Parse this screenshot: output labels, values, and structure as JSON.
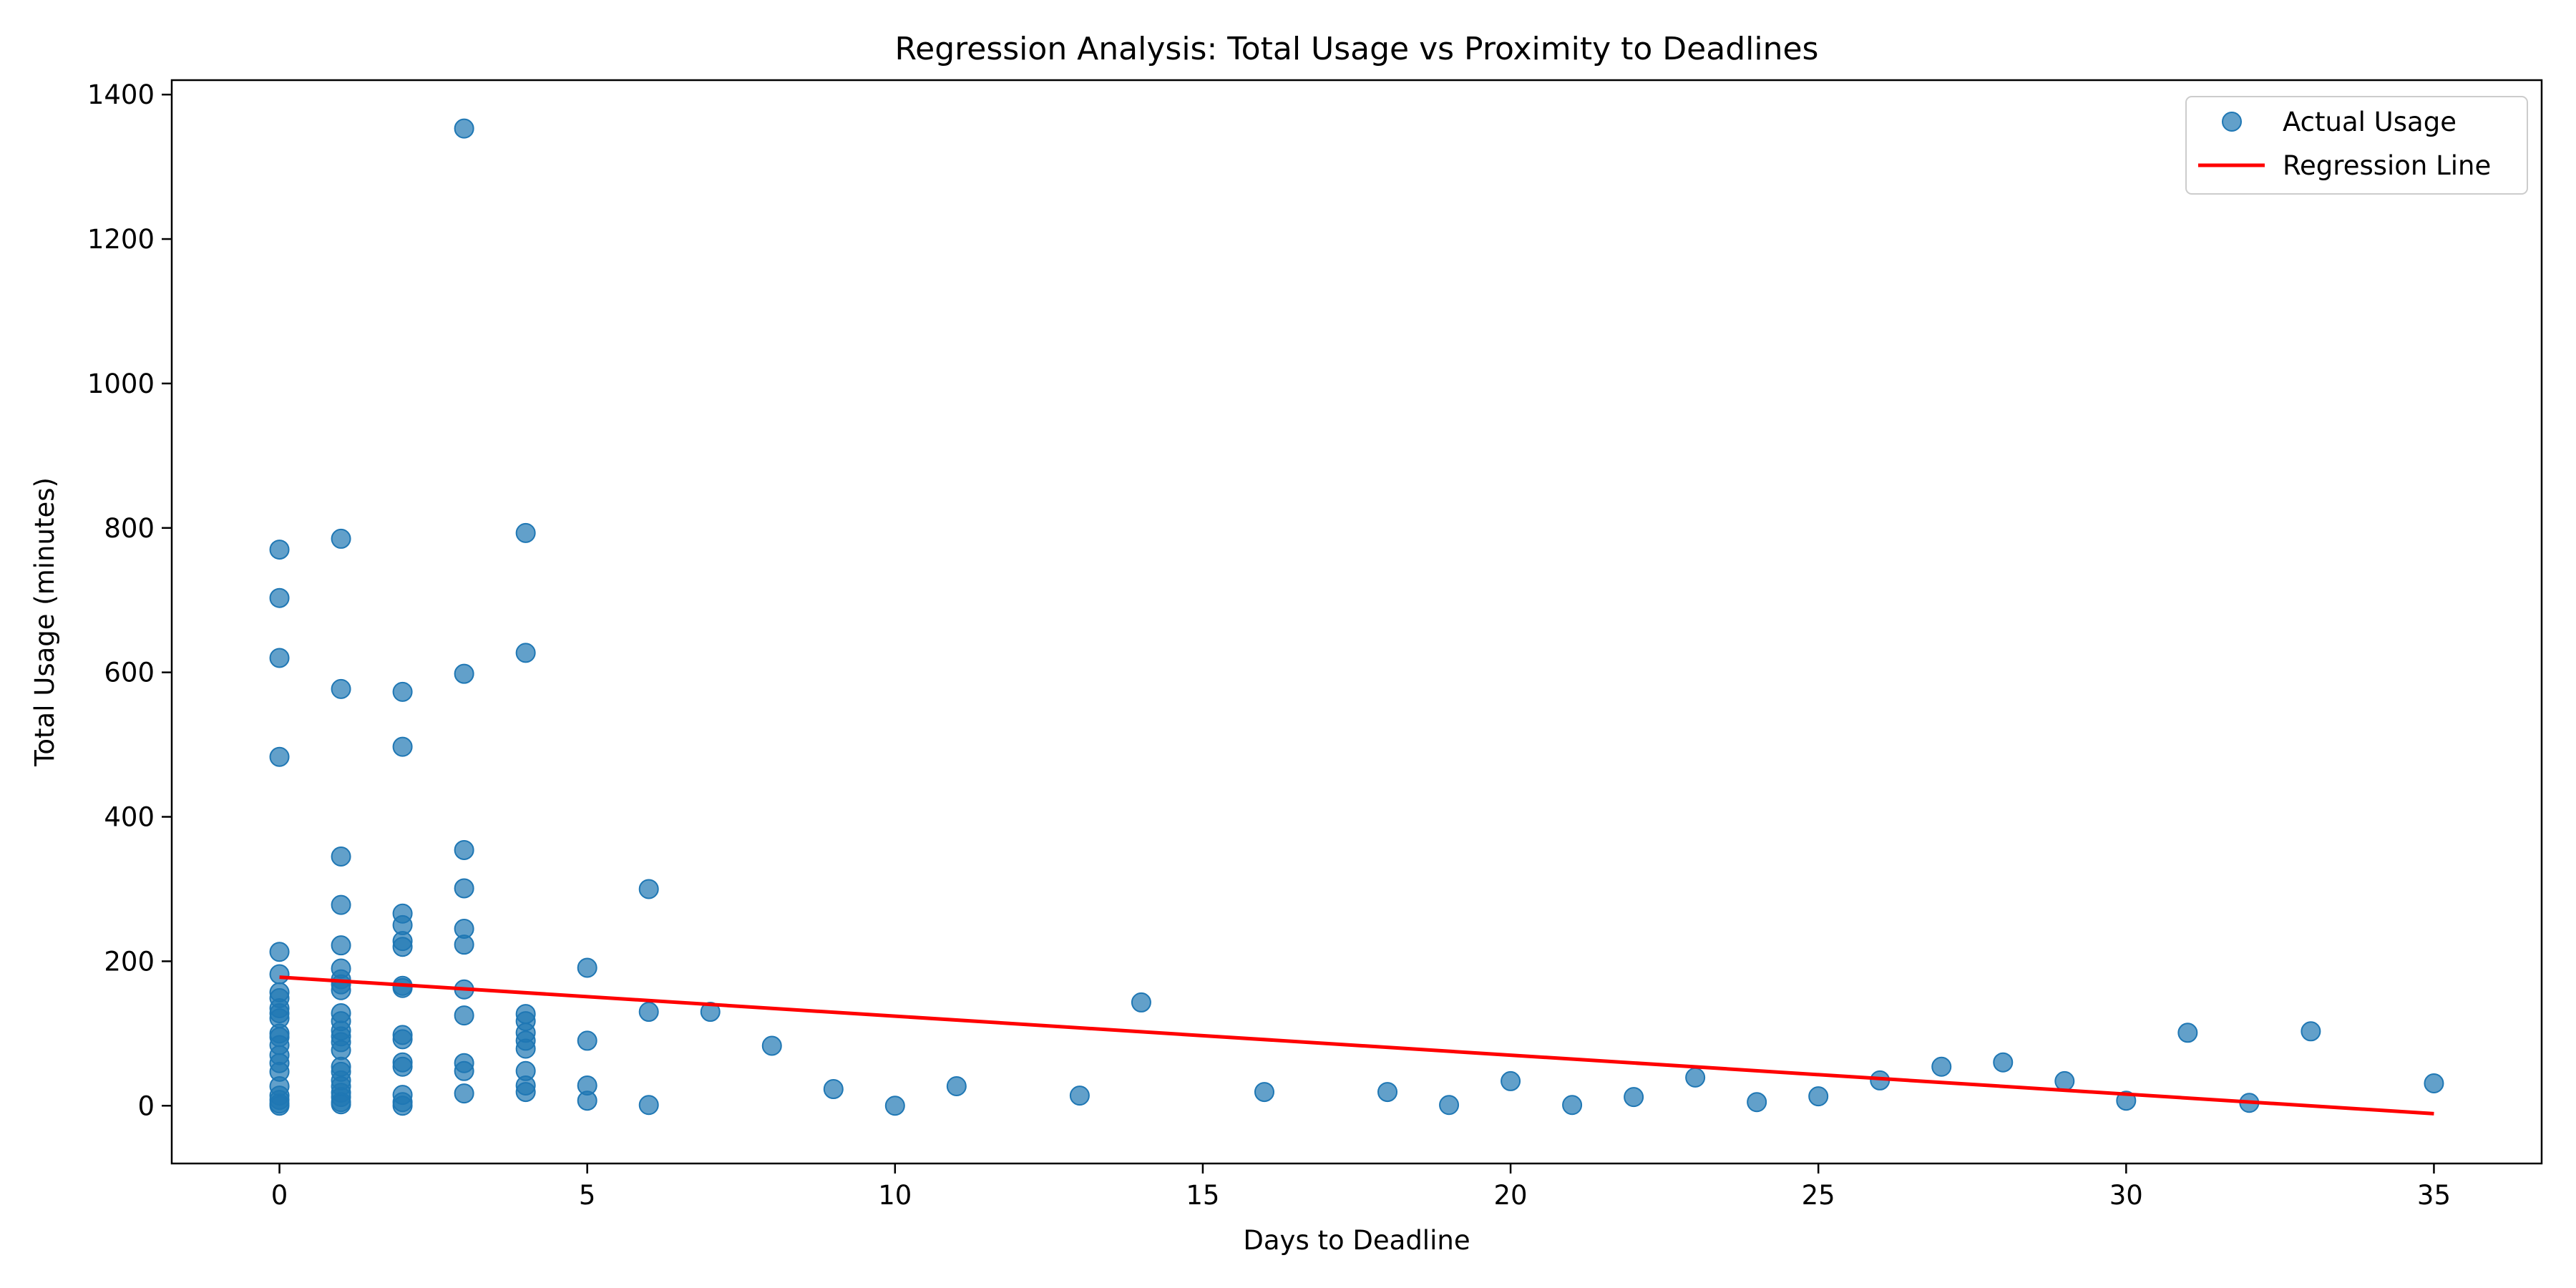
{
  "chart_data": {
    "type": "scatter",
    "title": "Regression Analysis: Total Usage vs Proximity to Deadlines",
    "xlabel": "Days to Deadline",
    "ylabel": "Total Usage (minutes)",
    "xlim": [
      -1.75,
      36.75
    ],
    "ylim": [
      -80,
      1420
    ],
    "x_ticks": [
      0,
      5,
      10,
      15,
      20,
      25,
      30,
      35
    ],
    "y_ticks": [
      0,
      200,
      400,
      600,
      800,
      1000,
      1200,
      1400
    ],
    "grid": false,
    "legend_position": "top-right",
    "series": [
      {
        "name": "Actual Usage",
        "kind": "scatter",
        "color": "#1f77b4",
        "points": [
          [
            0,
            770
          ],
          [
            0,
            703
          ],
          [
            0,
            620
          ],
          [
            0,
            483
          ],
          [
            0,
            213
          ],
          [
            0,
            182
          ],
          [
            0,
            157
          ],
          [
            0,
            149
          ],
          [
            0,
            135
          ],
          [
            0,
            128
          ],
          [
            0,
            121
          ],
          [
            0,
            100
          ],
          [
            0,
            95
          ],
          [
            0,
            84
          ],
          [
            0,
            70
          ],
          [
            0,
            59
          ],
          [
            0,
            47
          ],
          [
            0,
            27
          ],
          [
            0,
            14
          ],
          [
            0,
            8
          ],
          [
            0,
            3
          ],
          [
            0,
            0
          ],
          [
            1,
            785
          ],
          [
            1,
            577
          ],
          [
            1,
            345
          ],
          [
            1,
            278
          ],
          [
            1,
            222
          ],
          [
            1,
            190
          ],
          [
            1,
            175
          ],
          [
            1,
            168
          ],
          [
            1,
            160
          ],
          [
            1,
            128
          ],
          [
            1,
            117
          ],
          [
            1,
            104
          ],
          [
            1,
            96
          ],
          [
            1,
            88
          ],
          [
            1,
            77
          ],
          [
            1,
            54
          ],
          [
            1,
            47
          ],
          [
            1,
            35
          ],
          [
            1,
            27
          ],
          [
            1,
            18
          ],
          [
            1,
            12
          ],
          [
            1,
            5
          ],
          [
            1,
            2
          ],
          [
            2,
            573
          ],
          [
            2,
            497
          ],
          [
            2,
            266
          ],
          [
            2,
            250
          ],
          [
            2,
            228
          ],
          [
            2,
            220
          ],
          [
            2,
            166
          ],
          [
            2,
            163
          ],
          [
            2,
            98
          ],
          [
            2,
            92
          ],
          [
            2,
            60
          ],
          [
            2,
            54
          ],
          [
            2,
            15
          ],
          [
            2,
            5
          ],
          [
            2,
            0
          ],
          [
            3,
            1353
          ],
          [
            3,
            598
          ],
          [
            3,
            354
          ],
          [
            3,
            301
          ],
          [
            3,
            245
          ],
          [
            3,
            223
          ],
          [
            3,
            161
          ],
          [
            3,
            125
          ],
          [
            3,
            59
          ],
          [
            3,
            48
          ],
          [
            3,
            17
          ],
          [
            4,
            793
          ],
          [
            4,
            627
          ],
          [
            4,
            127
          ],
          [
            4,
            117
          ],
          [
            4,
            101
          ],
          [
            4,
            90
          ],
          [
            4,
            79
          ],
          [
            4,
            48
          ],
          [
            4,
            28
          ],
          [
            4,
            19
          ],
          [
            5,
            191
          ],
          [
            5,
            90
          ],
          [
            5,
            28
          ],
          [
            5,
            7
          ],
          [
            6,
            300
          ],
          [
            6,
            130
          ],
          [
            6,
            1
          ],
          [
            7,
            130
          ],
          [
            8,
            83
          ],
          [
            9,
            23
          ],
          [
            10,
            0
          ],
          [
            11,
            27
          ],
          [
            13,
            14
          ],
          [
            14,
            143
          ],
          [
            16,
            19
          ],
          [
            18,
            19
          ],
          [
            19,
            1
          ],
          [
            20,
            34
          ],
          [
            21,
            1
          ],
          [
            22,
            12
          ],
          [
            23,
            39
          ],
          [
            24,
            5
          ],
          [
            25,
            13
          ],
          [
            26,
            35
          ],
          [
            27,
            54
          ],
          [
            28,
            60
          ],
          [
            29,
            34
          ],
          [
            30,
            7
          ],
          [
            31,
            101
          ],
          [
            32,
            4
          ],
          [
            33,
            103
          ],
          [
            35,
            31
          ]
        ]
      },
      {
        "name": "Regression Line",
        "kind": "line",
        "color": "#ff0000",
        "points": [
          [
            0,
            178
          ],
          [
            35,
            -11
          ]
        ]
      }
    ]
  }
}
